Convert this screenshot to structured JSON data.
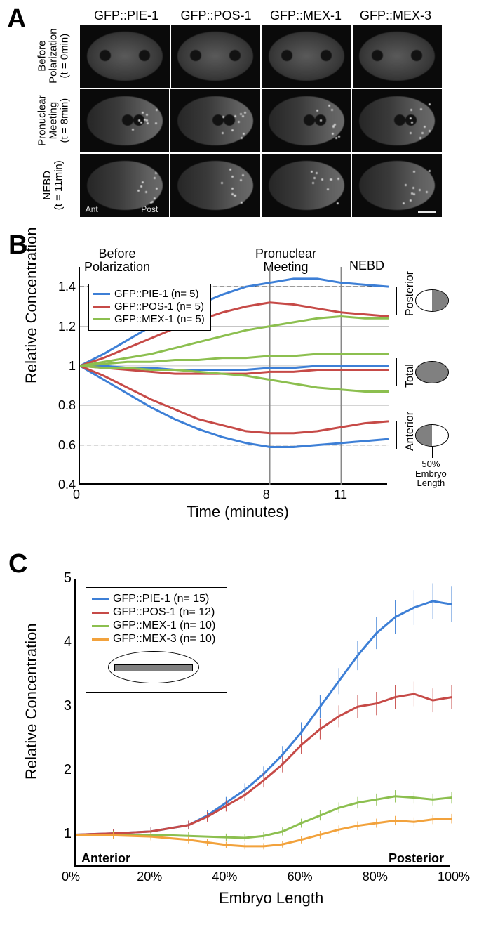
{
  "colors": {
    "pie1": "#3d7fd6",
    "pos1": "#c64a47",
    "mex1": "#8cbf4f",
    "mex3": "#f2a23c",
    "grid": "#c5c5c5",
    "axis": "#000000",
    "errband": 0.25
  },
  "panelA": {
    "label": "A",
    "columns": [
      "GFP::PIE-1",
      "GFP::POS-1",
      "GFP::MEX-1",
      "GFP::MEX-3"
    ],
    "rows": [
      "Before\nPolarization\n(t = 0min)",
      "Pronuclear\nMeeting\n(t = 8min)",
      "NEBD\n(t = 11min)"
    ],
    "ant": "Ant",
    "post": "Post"
  },
  "panelB": {
    "label": "B",
    "ylabel": "Relative Concentration",
    "xlabel": "Time (minutes)",
    "annotations": {
      "before": "Before\nPolarization",
      "pnm": "Pronuclear\nMeeting",
      "nebd": "NEBD"
    },
    "xlim": [
      0,
      13
    ],
    "ylim": [
      0.4,
      1.5
    ],
    "yticks": [
      0.4,
      0.6,
      0.8,
      1,
      1.2,
      1.4
    ],
    "xticks": [
      0,
      8,
      11
    ],
    "vlines": [
      8,
      11
    ],
    "hlines_dash": [
      0.6,
      1.4
    ],
    "legend": [
      {
        "label": "GFP::PIE-1 (n= 5)",
        "colorKey": "pie1"
      },
      {
        "label": "GFP::POS-1 (n= 5)",
        "colorKey": "pos1"
      },
      {
        "label": "GFP::MEX-1 (n= 5)",
        "colorKey": "mex1"
      }
    ],
    "right_labels": [
      "Posterior",
      "Total",
      "Anterior"
    ],
    "right_caption": "50%\nEmbryo\nLength",
    "series": {
      "pie1_post": [
        [
          0,
          1.0
        ],
        [
          1,
          1.06
        ],
        [
          2,
          1.13
        ],
        [
          3,
          1.2
        ],
        [
          4,
          1.26
        ],
        [
          5,
          1.31
        ],
        [
          6,
          1.36
        ],
        [
          7,
          1.4
        ],
        [
          8,
          1.42
        ],
        [
          9,
          1.44
        ],
        [
          10,
          1.44
        ],
        [
          11,
          1.42
        ],
        [
          12,
          1.41
        ],
        [
          13,
          1.4
        ]
      ],
      "pos1_post": [
        [
          0,
          1.0
        ],
        [
          1,
          1.04
        ],
        [
          2,
          1.09
        ],
        [
          3,
          1.14
        ],
        [
          4,
          1.19
        ],
        [
          5,
          1.23
        ],
        [
          6,
          1.27
        ],
        [
          7,
          1.3
        ],
        [
          8,
          1.32
        ],
        [
          9,
          1.31
        ],
        [
          10,
          1.29
        ],
        [
          11,
          1.27
        ],
        [
          12,
          1.26
        ],
        [
          13,
          1.25
        ]
      ],
      "mex1_post": [
        [
          0,
          1.0
        ],
        [
          1,
          1.02
        ],
        [
          2,
          1.04
        ],
        [
          3,
          1.06
        ],
        [
          4,
          1.09
        ],
        [
          5,
          1.12
        ],
        [
          6,
          1.15
        ],
        [
          7,
          1.18
        ],
        [
          8,
          1.2
        ],
        [
          9,
          1.22
        ],
        [
          10,
          1.24
        ],
        [
          11,
          1.25
        ],
        [
          12,
          1.24
        ],
        [
          13,
          1.24
        ]
      ],
      "pie1_tot": [
        [
          0,
          1.0
        ],
        [
          1,
          1.0
        ],
        [
          2,
          0.99
        ],
        [
          3,
          0.99
        ],
        [
          4,
          0.98
        ],
        [
          5,
          0.98
        ],
        [
          6,
          0.98
        ],
        [
          7,
          0.98
        ],
        [
          8,
          0.99
        ],
        [
          9,
          0.99
        ],
        [
          10,
          1.0
        ],
        [
          11,
          1.0
        ],
        [
          12,
          1.0
        ],
        [
          13,
          1.0
        ]
      ],
      "pos1_tot": [
        [
          0,
          1.0
        ],
        [
          1,
          0.99
        ],
        [
          2,
          0.98
        ],
        [
          3,
          0.97
        ],
        [
          4,
          0.96
        ],
        [
          5,
          0.96
        ],
        [
          6,
          0.96
        ],
        [
          7,
          0.96
        ],
        [
          8,
          0.97
        ],
        [
          9,
          0.97
        ],
        [
          10,
          0.98
        ],
        [
          11,
          0.98
        ],
        [
          12,
          0.98
        ],
        [
          13,
          0.98
        ]
      ],
      "mex1_tot": [
        [
          0,
          1.0
        ],
        [
          1,
          1.01
        ],
        [
          2,
          1.02
        ],
        [
          3,
          1.02
        ],
        [
          4,
          1.03
        ],
        [
          5,
          1.03
        ],
        [
          6,
          1.04
        ],
        [
          7,
          1.04
        ],
        [
          8,
          1.05
        ],
        [
          9,
          1.05
        ],
        [
          10,
          1.06
        ],
        [
          11,
          1.06
        ],
        [
          12,
          1.06
        ],
        [
          13,
          1.06
        ]
      ],
      "pie1_ant": [
        [
          0,
          1.0
        ],
        [
          1,
          0.93
        ],
        [
          2,
          0.86
        ],
        [
          3,
          0.79
        ],
        [
          4,
          0.73
        ],
        [
          5,
          0.68
        ],
        [
          6,
          0.64
        ],
        [
          7,
          0.61
        ],
        [
          8,
          0.59
        ],
        [
          9,
          0.59
        ],
        [
          10,
          0.6
        ],
        [
          11,
          0.61
        ],
        [
          12,
          0.62
        ],
        [
          13,
          0.63
        ]
      ],
      "pos1_ant": [
        [
          0,
          1.0
        ],
        [
          1,
          0.95
        ],
        [
          2,
          0.89
        ],
        [
          3,
          0.83
        ],
        [
          4,
          0.78
        ],
        [
          5,
          0.73
        ],
        [
          6,
          0.7
        ],
        [
          7,
          0.67
        ],
        [
          8,
          0.66
        ],
        [
          9,
          0.66
        ],
        [
          10,
          0.67
        ],
        [
          11,
          0.69
        ],
        [
          12,
          0.71
        ],
        [
          13,
          0.72
        ]
      ],
      "mex1_ant": [
        [
          0,
          1.0
        ],
        [
          1,
          0.99
        ],
        [
          2,
          0.99
        ],
        [
          3,
          0.98
        ],
        [
          4,
          0.98
        ],
        [
          5,
          0.97
        ],
        [
          6,
          0.96
        ],
        [
          7,
          0.95
        ],
        [
          8,
          0.93
        ],
        [
          9,
          0.91
        ],
        [
          10,
          0.89
        ],
        [
          11,
          0.88
        ],
        [
          12,
          0.87
        ],
        [
          13,
          0.87
        ]
      ]
    },
    "line_width": 3
  },
  "panelC": {
    "label": "C",
    "ylabel": "Relative Concentration",
    "xlabel": "Embryo Length",
    "xlim": [
      0,
      100
    ],
    "ylim": [
      0.5,
      5
    ],
    "yticks": [
      1,
      2,
      3,
      4,
      5
    ],
    "xticks": [
      0,
      20,
      40,
      60,
      80,
      100
    ],
    "legend": [
      {
        "label": "GFP::PIE-1 (n= 15)",
        "colorKey": "pie1"
      },
      {
        "label": "GFP::POS-1 (n= 12)",
        "colorKey": "pos1"
      },
      {
        "label": "GFP::MEX-1 (n= 10)",
        "colorKey": "mex1"
      },
      {
        "label": "GFP::MEX-3 (n= 10)",
        "colorKey": "mex3"
      }
    ],
    "ant": "Anterior",
    "post": "Posterior",
    "series": {
      "pie1": [
        [
          0,
          1.0
        ],
        [
          10,
          1.02
        ],
        [
          20,
          1.05
        ],
        [
          30,
          1.15
        ],
        [
          35,
          1.3
        ],
        [
          40,
          1.5
        ],
        [
          45,
          1.7
        ],
        [
          50,
          1.95
        ],
        [
          55,
          2.25
        ],
        [
          60,
          2.6
        ],
        [
          65,
          3.0
        ],
        [
          70,
          3.4
        ],
        [
          75,
          3.8
        ],
        [
          80,
          4.15
        ],
        [
          85,
          4.4
        ],
        [
          90,
          4.55
        ],
        [
          95,
          4.65
        ],
        [
          100,
          4.6
        ]
      ],
      "pos1": [
        [
          0,
          1.0
        ],
        [
          10,
          1.02
        ],
        [
          20,
          1.05
        ],
        [
          30,
          1.15
        ],
        [
          35,
          1.28
        ],
        [
          40,
          1.45
        ],
        [
          45,
          1.62
        ],
        [
          50,
          1.85
        ],
        [
          55,
          2.1
        ],
        [
          60,
          2.4
        ],
        [
          65,
          2.65
        ],
        [
          70,
          2.85
        ],
        [
          75,
          3.0
        ],
        [
          80,
          3.05
        ],
        [
          85,
          3.15
        ],
        [
          90,
          3.2
        ],
        [
          95,
          3.1
        ],
        [
          100,
          3.15
        ]
      ],
      "mex1": [
        [
          0,
          1.0
        ],
        [
          10,
          1.0
        ],
        [
          20,
          1.0
        ],
        [
          30,
          0.98
        ],
        [
          40,
          0.96
        ],
        [
          45,
          0.95
        ],
        [
          50,
          0.98
        ],
        [
          55,
          1.05
        ],
        [
          60,
          1.18
        ],
        [
          65,
          1.3
        ],
        [
          70,
          1.42
        ],
        [
          75,
          1.5
        ],
        [
          80,
          1.55
        ],
        [
          85,
          1.6
        ],
        [
          90,
          1.58
        ],
        [
          95,
          1.55
        ],
        [
          100,
          1.58
        ]
      ],
      "mex3": [
        [
          0,
          1.0
        ],
        [
          10,
          0.99
        ],
        [
          20,
          0.97
        ],
        [
          30,
          0.92
        ],
        [
          35,
          0.88
        ],
        [
          40,
          0.84
        ],
        [
          45,
          0.82
        ],
        [
          50,
          0.82
        ],
        [
          55,
          0.85
        ],
        [
          60,
          0.92
        ],
        [
          65,
          1.0
        ],
        [
          70,
          1.08
        ],
        [
          75,
          1.14
        ],
        [
          80,
          1.18
        ],
        [
          85,
          1.22
        ],
        [
          90,
          1.2
        ],
        [
          95,
          1.24
        ],
        [
          100,
          1.25
        ]
      ]
    },
    "line_width": 3
  }
}
